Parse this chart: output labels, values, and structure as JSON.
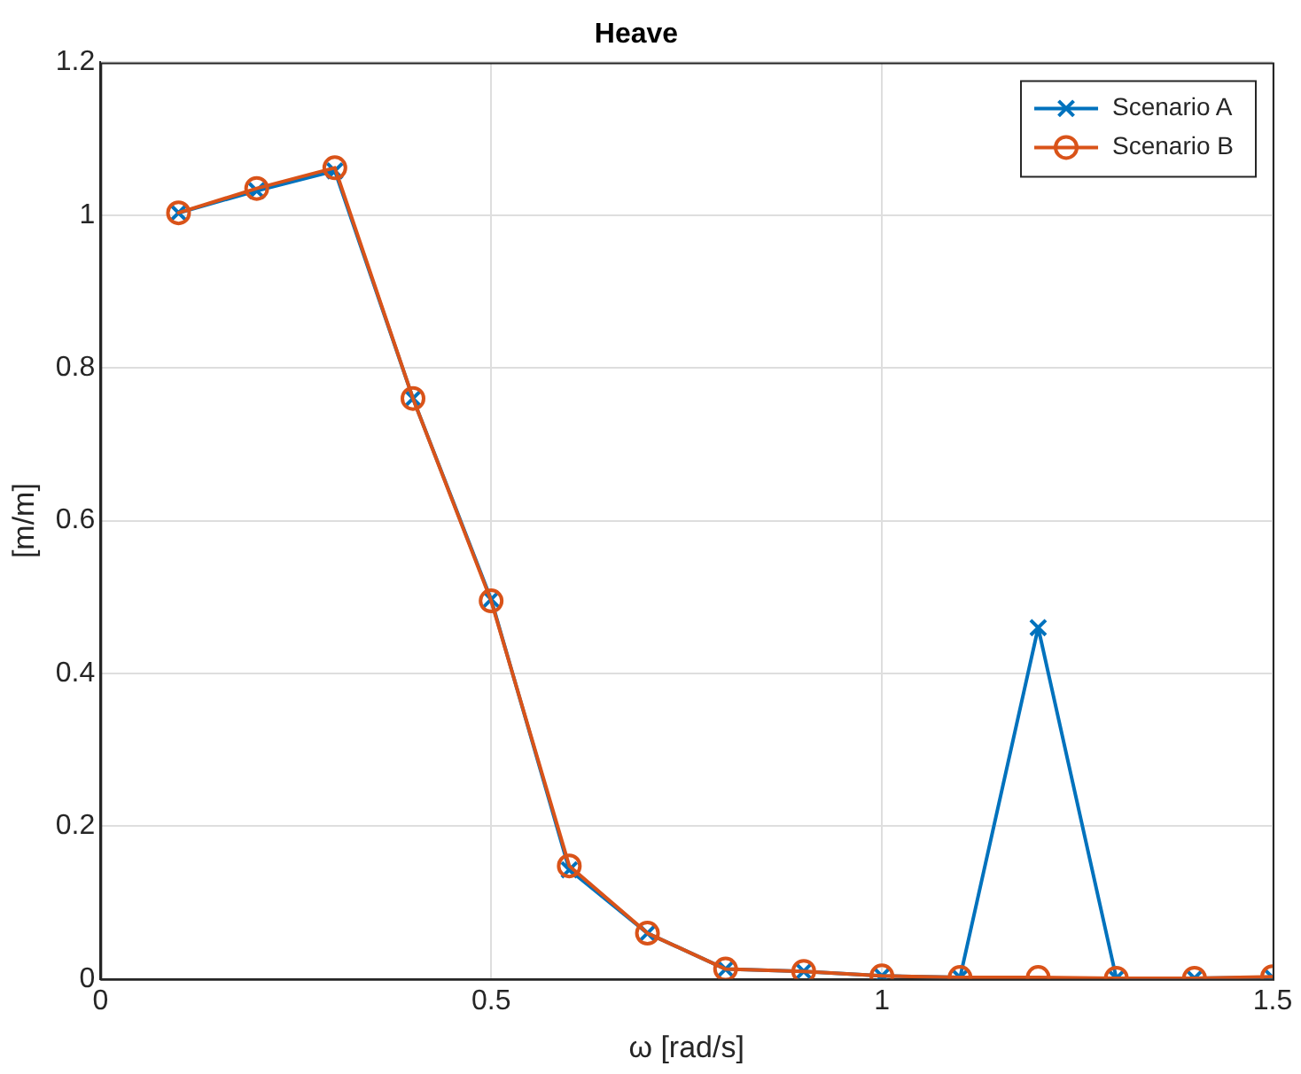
{
  "chart_data": {
    "type": "line",
    "title": "Heave",
    "xlabel": "ω [rad/s]",
    "ylabel": "[m/m]",
    "x": [
      0.1,
      0.2,
      0.3,
      0.4,
      0.5,
      0.6,
      0.7,
      0.8,
      0.9,
      1.0,
      1.1,
      1.2,
      1.3,
      1.4,
      1.5
    ],
    "series": [
      {
        "name": "Scenario A",
        "color": "#0072bd",
        "marker": "cross",
        "values": [
          1.003,
          1.032,
          1.058,
          0.76,
          0.497,
          0.143,
          0.06,
          0.013,
          0.01,
          0.004,
          0.002,
          0.46,
          0.001,
          0.001,
          0.002
        ]
      },
      {
        "name": "Scenario B",
        "color": "#d95319",
        "marker": "circle",
        "values": [
          1.003,
          1.035,
          1.062,
          0.76,
          0.495,
          0.148,
          0.06,
          0.013,
          0.01,
          0.004,
          0.002,
          0.002,
          0.001,
          0.001,
          0.003
        ]
      }
    ],
    "xlim": [
      0,
      1.5
    ],
    "xticks": [
      0,
      0.5,
      1,
      1.5
    ],
    "ylim": [
      0,
      1.2
    ],
    "yticks": [
      0,
      0.2,
      0.4,
      0.6,
      0.8,
      1,
      1.2
    ],
    "grid": true,
    "legend": "top right",
    "line_style": "solid"
  }
}
